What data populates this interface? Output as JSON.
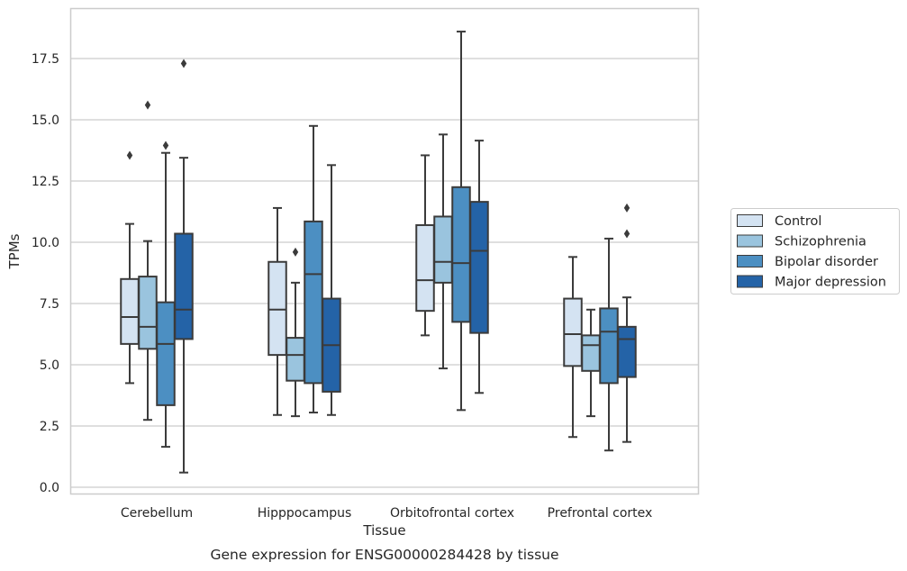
{
  "chart_data": {
    "type": "box",
    "title": "",
    "caption": "Gene expression for ENSG00000284428 by tissue",
    "xlabel": "Tissue",
    "ylabel": "TPMs",
    "ylim": [
      -0.3,
      19.6
    ],
    "yticks": [
      0.0,
      2.5,
      5.0,
      7.5,
      10.0,
      12.5,
      15.0,
      17.5
    ],
    "ytick_labels": [
      "0.0",
      "2.5",
      "5.0",
      "7.5",
      "10.0",
      "12.5",
      "15.0",
      "17.5"
    ],
    "grid": true,
    "legend_position": "right",
    "categories": [
      "Cerebellum",
      "Hipppocampus",
      "Orbitofrontal cortex",
      "Prefrontal cortex"
    ],
    "series": [
      {
        "name": "Control",
        "color": "#d4e3f2",
        "boxes": [
          {
            "whisker_low": 4.25,
            "q1": 5.85,
            "median": 6.95,
            "q3": 8.5,
            "whisker_high": 10.75,
            "outliers": [
              13.55
            ]
          },
          {
            "whisker_low": 2.95,
            "q1": 5.4,
            "median": 7.25,
            "q3": 9.2,
            "whisker_high": 11.4,
            "outliers": []
          },
          {
            "whisker_low": 6.2,
            "q1": 7.2,
            "median": 8.45,
            "q3": 10.7,
            "whisker_high": 13.55,
            "outliers": []
          },
          {
            "whisker_low": 2.05,
            "q1": 4.95,
            "median": 6.25,
            "q3": 7.7,
            "whisker_high": 9.4,
            "outliers": []
          }
        ]
      },
      {
        "name": "Schizophrenia",
        "color": "#9ac4de",
        "boxes": [
          {
            "whisker_low": 2.75,
            "q1": 5.65,
            "median": 6.55,
            "q3": 8.6,
            "whisker_high": 10.05,
            "outliers": [
              15.6
            ]
          },
          {
            "whisker_low": 2.9,
            "q1": 4.35,
            "median": 5.4,
            "q3": 6.1,
            "whisker_high": 8.35,
            "outliers": [
              9.6
            ]
          },
          {
            "whisker_low": 4.85,
            "q1": 8.35,
            "median": 9.2,
            "q3": 11.05,
            "whisker_high": 14.4,
            "outliers": []
          },
          {
            "whisker_low": 2.9,
            "q1": 4.75,
            "median": 5.8,
            "q3": 6.2,
            "whisker_high": 7.25,
            "outliers": []
          }
        ]
      },
      {
        "name": "Bipolar disorder",
        "color": "#4c8fc2",
        "boxes": [
          {
            "whisker_low": 1.65,
            "q1": 3.35,
            "median": 5.85,
            "q3": 7.55,
            "whisker_high": 13.65,
            "outliers": [
              13.95
            ]
          },
          {
            "whisker_low": 3.05,
            "q1": 4.25,
            "median": 8.7,
            "q3": 10.85,
            "whisker_high": 14.75,
            "outliers": []
          },
          {
            "whisker_low": 3.15,
            "q1": 6.75,
            "median": 9.15,
            "q3": 12.25,
            "whisker_high": 18.6,
            "outliers": []
          },
          {
            "whisker_low": 1.5,
            "q1": 4.25,
            "median": 6.35,
            "q3": 7.3,
            "whisker_high": 10.15,
            "outliers": []
          }
        ]
      },
      {
        "name": "Major depression",
        "color": "#2463a7",
        "boxes": [
          {
            "whisker_low": 0.6,
            "q1": 6.05,
            "median": 7.25,
            "q3": 10.35,
            "whisker_high": 13.45,
            "outliers": [
              17.3
            ]
          },
          {
            "whisker_low": 2.95,
            "q1": 3.9,
            "median": 5.8,
            "q3": 7.7,
            "whisker_high": 13.15,
            "outliers": []
          },
          {
            "whisker_low": 3.85,
            "q1": 6.3,
            "median": 9.65,
            "q3": 11.65,
            "whisker_high": 14.15,
            "outliers": []
          },
          {
            "whisker_low": 1.85,
            "q1": 4.5,
            "median": 6.05,
            "q3": 6.55,
            "whisker_high": 7.75,
            "outliers": [
              10.35,
              11.4
            ]
          }
        ]
      }
    ]
  }
}
